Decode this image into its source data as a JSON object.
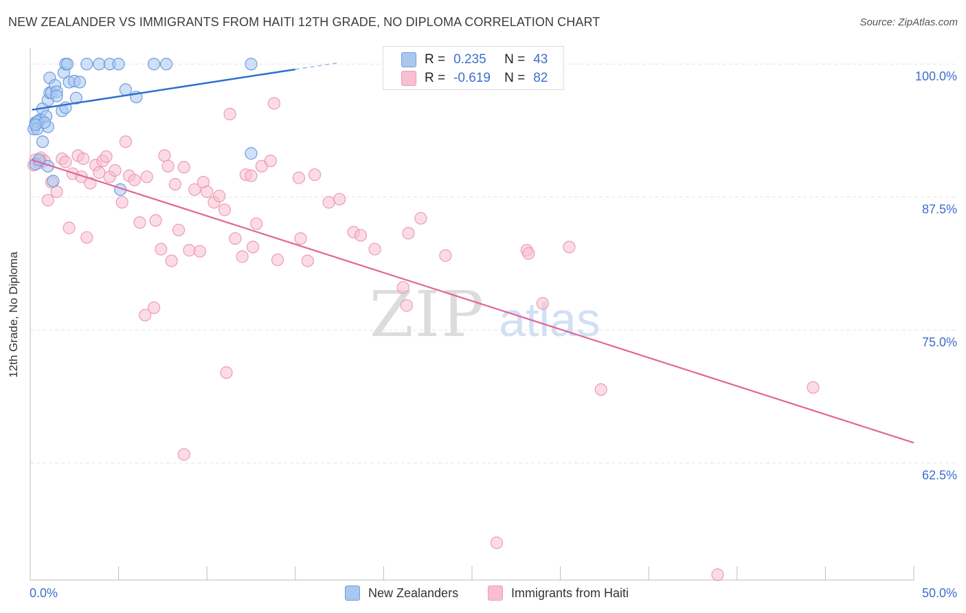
{
  "title": "NEW ZEALANDER VS IMMIGRANTS FROM HAITI 12TH GRADE, NO DIPLOMA CORRELATION CHART",
  "source": "Source: ZipAtlas.com",
  "watermark": {
    "zip": "ZIP",
    "atlas": "atlas"
  },
  "colors": {
    "blue_fill": "#a9c8f0",
    "blue_stroke": "#6d9be0",
    "blue_line": "#2f6fcf",
    "pink_fill": "#f7bfd0",
    "pink_stroke": "#ee9ab5",
    "pink_line": "#e0649a",
    "axis_label": "#3b6fce",
    "grid": "#e3e3e3"
  },
  "legend": {
    "r_label": "R =",
    "n_label": "N =",
    "rows": [
      {
        "r": "0.235",
        "n": "43"
      },
      {
        "r": "-0.619",
        "n": "82"
      }
    ]
  },
  "chart_data": {
    "type": "scatter",
    "title": "NEW ZEALANDER VS IMMIGRANTS FROM HAITI 12TH GRADE, NO DIPLOMA CORRELATION CHART",
    "xlabel": "",
    "ylabel": "12th Grade, No Diploma",
    "x_unit": "%",
    "xlim": [
      0,
      50
    ],
    "ylim": [
      51.5,
      101.5
    ],
    "x_tick_labels": [
      "0.0%",
      "50.0%"
    ],
    "y_ticks": [
      100.0,
      87.5,
      75.0,
      62.5
    ],
    "y_tick_labels": [
      "100.0%",
      "87.5%",
      "75.0%",
      "62.5%"
    ],
    "grid": true,
    "legend_position": "top-center",
    "series": [
      {
        "name": "New Zealanders",
        "r": 0.235,
        "n": 43,
        "trend": {
          "x": [
            0.1,
            15.0
          ],
          "y": [
            95.7,
            99.5
          ],
          "dashed_to_x": 17.5
        },
        "points": [
          [
            0.3,
            94.5
          ],
          [
            0.2,
            93.9
          ],
          [
            0.5,
            94.7
          ],
          [
            0.6,
            94.8
          ],
          [
            0.4,
            94.6
          ],
          [
            0.7,
            95.8
          ],
          [
            0.9,
            95.1
          ],
          [
            0.7,
            92.7
          ],
          [
            1.0,
            94.1
          ],
          [
            1.0,
            96.6
          ],
          [
            1.1,
            97.3
          ],
          [
            1.2,
            97.3
          ],
          [
            1.1,
            98.7
          ],
          [
            1.4,
            98.0
          ],
          [
            1.5,
            97.4
          ],
          [
            1.8,
            95.6
          ],
          [
            1.9,
            99.2
          ],
          [
            2.0,
            100.0
          ],
          [
            2.1,
            100.0
          ],
          [
            2.0,
            95.9
          ],
          [
            2.2,
            98.3
          ],
          [
            2.5,
            98.4
          ],
          [
            2.6,
            96.8
          ],
          [
            2.8,
            98.3
          ],
          [
            3.2,
            100.0
          ],
          [
            3.9,
            100.0
          ],
          [
            4.5,
            100.0
          ],
          [
            5.0,
            100.0
          ],
          [
            5.4,
            97.6
          ],
          [
            6.0,
            96.9
          ],
          [
            7.0,
            100.0
          ],
          [
            7.7,
            100.0
          ],
          [
            12.5,
            100.0
          ],
          [
            12.5,
            91.6
          ],
          [
            1.0,
            90.4
          ],
          [
            1.3,
            89.0
          ],
          [
            5.1,
            88.2
          ],
          [
            0.3,
            90.6
          ],
          [
            0.5,
            91.0
          ],
          [
            0.4,
            93.9
          ],
          [
            0.8,
            94.5
          ],
          [
            1.5,
            97.0
          ],
          [
            0.3,
            94.3
          ]
        ]
      },
      {
        "name": "Immigrants from Haiti",
        "r": -0.619,
        "n": 82,
        "trend": {
          "x": [
            0.1,
            50.0
          ],
          "y": [
            91.0,
            64.4
          ]
        },
        "points": [
          [
            0.2,
            90.5
          ],
          [
            0.3,
            91.0
          ],
          [
            0.5,
            90.7
          ],
          [
            0.6,
            91.2
          ],
          [
            0.8,
            90.9
          ],
          [
            1.0,
            87.2
          ],
          [
            1.2,
            88.9
          ],
          [
            1.5,
            88.0
          ],
          [
            1.8,
            91.1
          ],
          [
            2.0,
            90.8
          ],
          [
            2.2,
            84.6
          ],
          [
            2.4,
            89.7
          ],
          [
            2.7,
            91.4
          ],
          [
            2.9,
            89.4
          ],
          [
            3.0,
            91.1
          ],
          [
            3.2,
            83.7
          ],
          [
            3.4,
            88.8
          ],
          [
            3.7,
            90.5
          ],
          [
            3.9,
            89.8
          ],
          [
            4.1,
            90.9
          ],
          [
            4.3,
            91.3
          ],
          [
            4.5,
            89.4
          ],
          [
            4.8,
            90.0
          ],
          [
            5.2,
            87.0
          ],
          [
            5.4,
            92.7
          ],
          [
            5.6,
            89.5
          ],
          [
            5.9,
            89.1
          ],
          [
            6.2,
            85.1
          ],
          [
            6.5,
            76.4
          ],
          [
            6.6,
            89.4
          ],
          [
            7.0,
            77.1
          ],
          [
            7.1,
            85.3
          ],
          [
            7.4,
            82.6
          ],
          [
            7.6,
            91.4
          ],
          [
            7.8,
            90.4
          ],
          [
            8.0,
            81.5
          ],
          [
            8.2,
            88.7
          ],
          [
            8.4,
            84.4
          ],
          [
            8.7,
            90.3
          ],
          [
            9.0,
            82.5
          ],
          [
            9.3,
            88.2
          ],
          [
            9.6,
            82.4
          ],
          [
            9.8,
            88.9
          ],
          [
            10.0,
            88.0
          ],
          [
            10.4,
            87.0
          ],
          [
            10.7,
            87.6
          ],
          [
            11.0,
            86.3
          ],
          [
            11.3,
            95.3
          ],
          [
            11.6,
            83.6
          ],
          [
            12.0,
            81.9
          ],
          [
            12.2,
            89.6
          ],
          [
            12.5,
            89.5
          ],
          [
            12.6,
            82.8
          ],
          [
            12.8,
            85.0
          ],
          [
            13.1,
            90.4
          ],
          [
            13.6,
            90.9
          ],
          [
            13.8,
            96.3
          ],
          [
            14.0,
            81.6
          ],
          [
            15.2,
            89.3
          ],
          [
            15.3,
            83.6
          ],
          [
            15.7,
            81.5
          ],
          [
            16.1,
            89.6
          ],
          [
            16.9,
            87.0
          ],
          [
            17.5,
            87.3
          ],
          [
            18.3,
            84.2
          ],
          [
            18.7,
            83.9
          ],
          [
            19.5,
            82.6
          ],
          [
            21.1,
            79.0
          ],
          [
            21.3,
            77.3
          ],
          [
            21.4,
            84.1
          ],
          [
            22.1,
            85.5
          ],
          [
            23.5,
            82.0
          ],
          [
            11.1,
            71.0
          ],
          [
            8.7,
            63.3
          ],
          [
            26.4,
            55.0
          ],
          [
            28.1,
            82.5
          ],
          [
            28.2,
            82.2
          ],
          [
            29.0,
            77.5
          ],
          [
            30.5,
            82.8
          ],
          [
            32.3,
            69.4
          ],
          [
            38.9,
            52.0
          ],
          [
            44.3,
            69.6
          ]
        ]
      }
    ]
  },
  "bottom_legend": [
    {
      "label": "New Zealanders"
    },
    {
      "label": "Immigrants from Haiti"
    }
  ]
}
